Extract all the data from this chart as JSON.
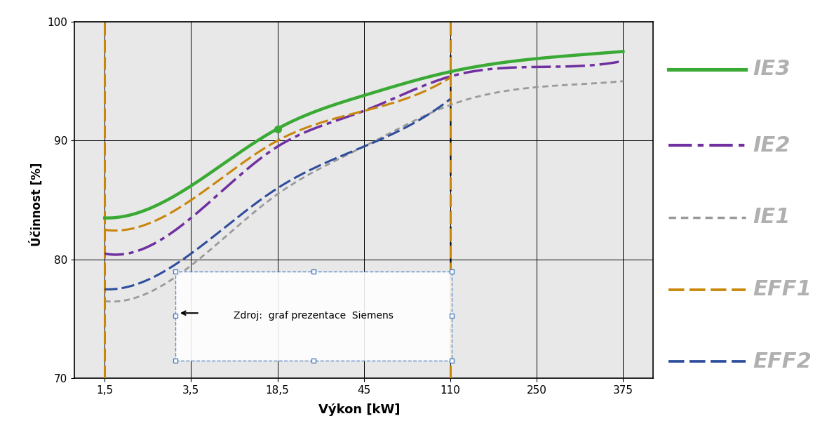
{
  "xlabel": "Výkon [kW]",
  "ylabel": "Účinnost [%]",
  "x_tick_labels": [
    "1,5",
    "3,5",
    "18,5",
    "45",
    "110",
    "250",
    "375"
  ],
  "ylim": [
    70,
    100
  ],
  "yticks": [
    70,
    80,
    90,
    100
  ],
  "plot_bg_color": "#e8e8e8",
  "ie3_color": "#3aaa35",
  "ie2_color": "#7030a0",
  "ie1_color": "#9a9a9a",
  "eff2_color": "#c8860a",
  "eff1_color": "#2e4d9c",
  "annotation_text": "Zdroj:  graf prezentace  Siemens",
  "ie3_values": [
    83.5,
    86.2,
    91.0,
    93.8,
    95.8,
    96.9,
    97.5
  ],
  "ie2_values": [
    80.5,
    83.5,
    89.5,
    92.5,
    95.4,
    96.2,
    96.7
  ],
  "ie1_values": [
    76.5,
    79.5,
    85.5,
    89.5,
    93.0,
    94.5,
    95.0
  ],
  "eff2_values": [
    82.5,
    85.0,
    90.0,
    92.5,
    95.3,
    null,
    null
  ],
  "eff1_values": [
    77.5,
    80.5,
    86.0,
    89.5,
    93.5,
    null,
    null
  ],
  "ie3_lw": 3.2,
  "ie2_lw": 2.5,
  "ie1_lw": 2.0,
  "eff2_lw": 2.2,
  "eff1_lw": 2.2
}
